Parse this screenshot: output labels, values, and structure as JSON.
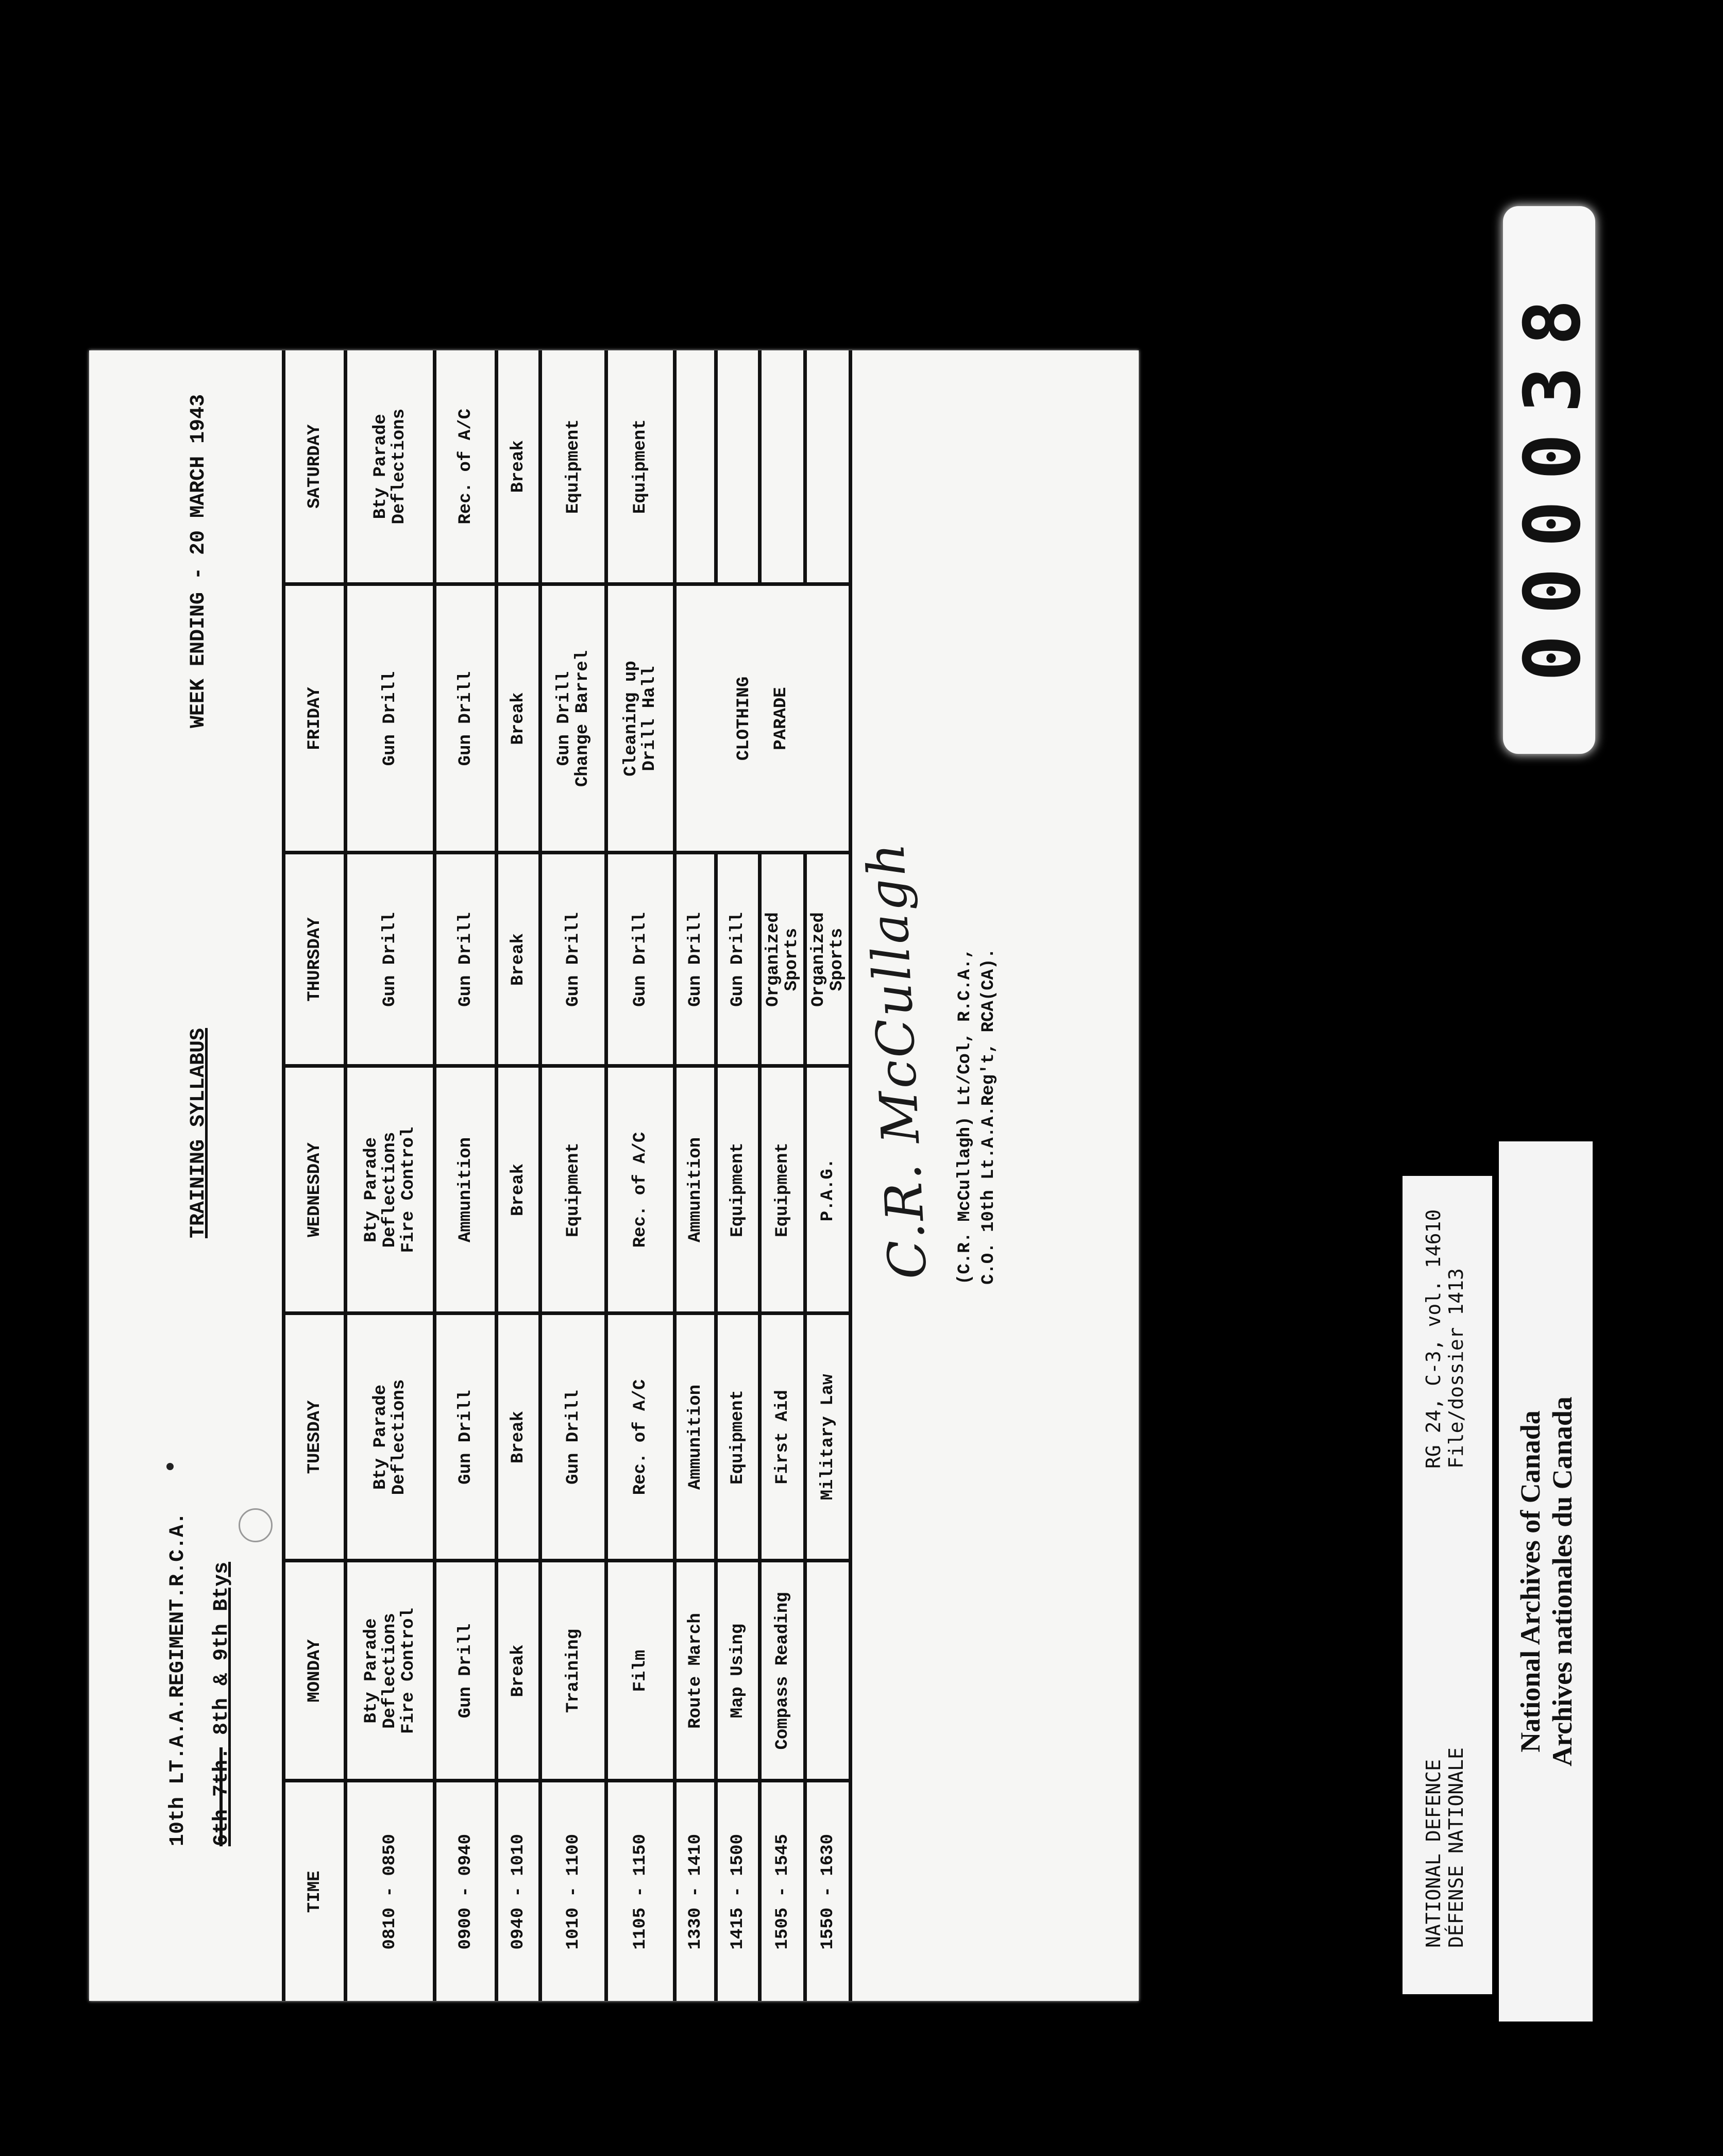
{
  "document": {
    "unit_title": "10th LT.A.A.REGIMENT.R.C.A.",
    "batteries_struck": "6th 7th.",
    "batteries": " 8th & 9th Btys",
    "title": "TRAINING SYLLABUS",
    "week_ending": "WEEK ENDING - 20 MARCH 1943",
    "table": {
      "headers": [
        "TIME",
        "MONDAY",
        "TUESDAY",
        "WEDNESDAY",
        "THURSDAY",
        "FRIDAY",
        "SATURDAY"
      ],
      "rows": [
        {
          "time": "0810 - 0850",
          "cells": [
            "Bty Parade\nDeflections\nFire Control",
            "Bty Parade\nDeflections",
            "Bty Parade\nDeflections\nFire Control",
            "Gun Drill",
            "Gun Drill",
            "Bty Parade\nDeflections"
          ]
        },
        {
          "time": "0900 - 0940",
          "cells": [
            "Gun Drill",
            "Gun Drill",
            "Ammunition",
            "Gun Drill",
            "Gun Drill",
            "Rec. of A/C"
          ]
        },
        {
          "time": "0940 - 1010",
          "cells": [
            "Break",
            "Break",
            "Break",
            "Break",
            "Break",
            "Break"
          ]
        },
        {
          "time": "1010 - 1100",
          "cells": [
            "Training",
            "Gun Drill",
            "Equipment",
            "Gun Drill",
            "Gun Drill\nChange Barrel",
            "Equipment"
          ]
        },
        {
          "time": "1105 - 1150",
          "cells": [
            "Film",
            "Rec. of A/C",
            "Rec. of A/C",
            "Gun Drill",
            "Cleaning up\nDrill Hall",
            "Equipment"
          ]
        },
        {
          "time": "1330 - 1410",
          "cells": [
            "Route March",
            "Ammunition",
            "Ammunition",
            "Gun Drill",
            "CLOTHING\n\nPARADE",
            ""
          ]
        },
        {
          "time": "1415 - 1500",
          "cells": [
            "Map Using",
            "Equipment",
            "Equipment",
            "Gun Drill",
            null,
            ""
          ]
        },
        {
          "time": "1505 - 1545",
          "cells": [
            "Compass Reading",
            "First Aid",
            "Equipment",
            "Organized\nSports",
            null,
            ""
          ]
        },
        {
          "time": "1550 - 1630",
          "cells": [
            "",
            "Military Law",
            "P.A.G.",
            "Organized\nSports",
            null,
            ""
          ]
        }
      ]
    },
    "signature": {
      "script": "C.R. McCullagh",
      "name_line": "(C.R. McCullagh) Lt/Col, R.C.A.,",
      "role_line": "C.O. 10th Lt.A.A.Reg't, RCA(CA)."
    }
  },
  "archive_label": {
    "dept_en": "NATIONAL DEFENCE",
    "dept_fr": "DÉFENSE NATIONALE",
    "reference": "RG 24, C-3, vol. 14610",
    "file": "File/dossier 1413"
  },
  "archive_banner": {
    "line1": "National Archives of Canada",
    "line2": "Archives nationales du Canada"
  },
  "frame_counter": "000038"
}
